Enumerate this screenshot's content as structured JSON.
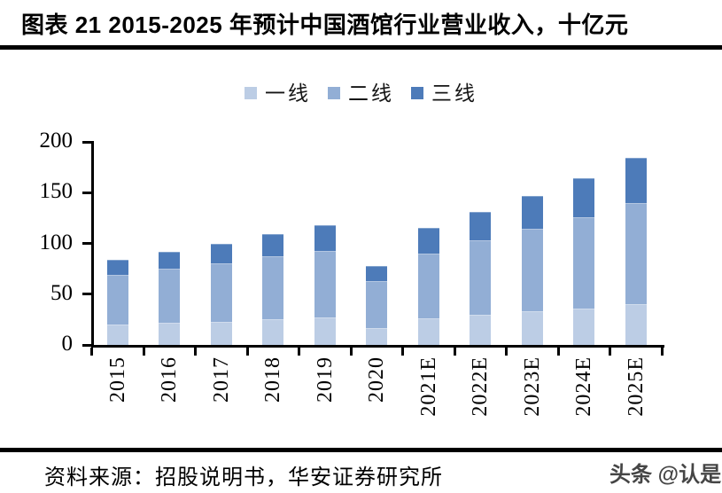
{
  "header": {
    "title": "图表 21 2015-2025 年预计中国酒馆行业营业收入，十亿元"
  },
  "chart_data": {
    "type": "bar",
    "stacked": true,
    "title": "2015-2025 年预计中国酒馆行业营业收入",
    "unit": "十亿元",
    "categories": [
      "2015",
      "2016",
      "2017",
      "2018",
      "2019",
      "2020",
      "2021E",
      "2022E",
      "2023E",
      "2024E",
      "2025E"
    ],
    "series": [
      {
        "name": "一线",
        "color": "#bccde5",
        "values": [
          20,
          22,
          23,
          25,
          27,
          17,
          26,
          30,
          33,
          36,
          40
        ]
      },
      {
        "name": "二线",
        "color": "#92aed5",
        "values": [
          49,
          53,
          57,
          62,
          66,
          46,
          64,
          73,
          81,
          90,
          100
        ]
      },
      {
        "name": "三线",
        "color": "#4d7bb9",
        "values": [
          15,
          17,
          20,
          22,
          25,
          15,
          25,
          28,
          33,
          38,
          44
        ]
      }
    ],
    "ylim": [
      0,
      200
    ],
    "yticks": [
      0,
      50,
      100,
      150,
      200
    ],
    "grid": false,
    "legend_position": "top",
    "axis_color": "#000000"
  },
  "footer": {
    "source": "资料来源：招股说明书，华安证券研究所",
    "watermark": "头条 @认是"
  }
}
